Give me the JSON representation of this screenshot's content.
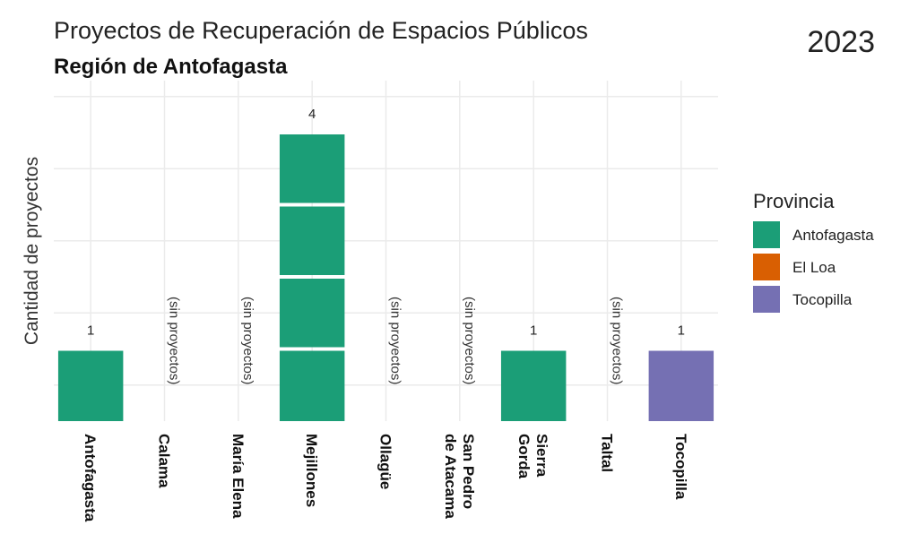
{
  "chart_data": {
    "type": "bar",
    "stacked_units": true,
    "title": "Proyectos de Recuperación de Espacios Públicos",
    "subtitle": "Región de Antofagasta",
    "year_label": "2023",
    "xlabel": "",
    "ylabel": "Cantidad de proyectos",
    "ylim": [
      0,
      4.4
    ],
    "grid": true,
    "legend_position": "right",
    "legend_title": "Provincia",
    "legend": [
      {
        "name": "Antofagasta",
        "color": "#1b9e77"
      },
      {
        "name": "El Loa",
        "color": "#d95f02"
      },
      {
        "name": "Tocopilla",
        "color": "#7570b3"
      }
    ],
    "no_data_label": "(sin proyectos)",
    "categories": [
      "Antofagasta",
      "Calama",
      "María Elena",
      "Mejillones",
      "Ollagüe",
      "San Pedro de Atacama",
      "Sierra Gorda",
      "Taltal",
      "Tocopilla"
    ],
    "category_label_lines": [
      [
        "Antofagasta"
      ],
      [
        "Calama"
      ],
      [
        "María Elena"
      ],
      [
        "Mejillones"
      ],
      [
        "Ollagüe"
      ],
      [
        "San Pedro",
        "de Atacama"
      ],
      [
        "Sierra",
        "Gorda"
      ],
      [
        "Taltal"
      ],
      [
        "Tocopilla"
      ]
    ],
    "values": [
      1,
      0,
      0,
      4,
      0,
      0,
      1,
      0,
      1
    ],
    "province": [
      "Antofagasta",
      "El Loa",
      "Antofagasta",
      "Antofagasta",
      "El Loa",
      "El Loa",
      "Antofagasta",
      "Antofagasta",
      "Tocopilla"
    ],
    "data_labels": [
      "1",
      "",
      "",
      "4",
      "",
      "",
      "1",
      "",
      "1"
    ]
  }
}
